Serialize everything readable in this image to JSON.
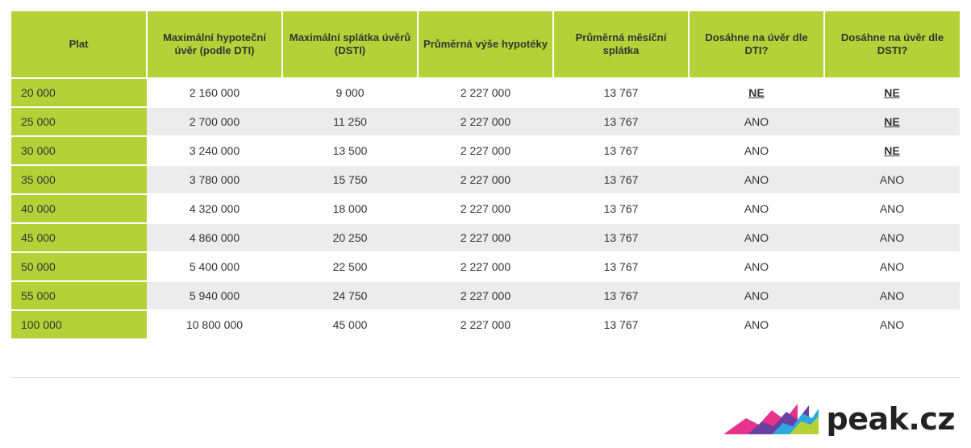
{
  "table": {
    "headers": [
      "Plat",
      "Maximální hypoteční úvěr (podle DTI)",
      "Maximální splátka úvěrů (DSTI)",
      "Průměrná výše hypotéky",
      "Průměrná měsíční splátka",
      "Dosáhne na úvěr dle DTI?",
      "Dosáhne na úvěr dle DSTI?"
    ],
    "rows": [
      [
        "20 000",
        "2 160 000",
        "9 000",
        "2 227 000",
        "13 767",
        "NE",
        "NE"
      ],
      [
        "25 000",
        "2 700 000",
        "11 250",
        "2 227 000",
        "13 767",
        "ANO",
        "NE"
      ],
      [
        "30 000",
        "3 240 000",
        "13 500",
        "2 227 000",
        "13 767",
        "ANO",
        "NE"
      ],
      [
        "35 000",
        "3 780 000",
        "15 750",
        "2 227 000",
        "13 767",
        "ANO",
        "ANO"
      ],
      [
        "40 000",
        "4 320 000",
        "18 000",
        "2 227 000",
        "13 767",
        "ANO",
        "ANO"
      ],
      [
        "45 000",
        "4 860 000",
        "20 250",
        "2 227 000",
        "13 767",
        "ANO",
        "ANO"
      ],
      [
        "50 000",
        "5 400 000",
        "22 500",
        "2 227 000",
        "13 767",
        "ANO",
        "ANO"
      ],
      [
        "55 000",
        "5 940 000",
        "24 750",
        "2 227 000",
        "13 767",
        "ANO",
        "ANO"
      ],
      [
        "100 000",
        "10 800 000",
        "45 000",
        "2 227 000",
        "13 767",
        "ANO",
        "ANO"
      ]
    ]
  },
  "logo": {
    "text": "peak.cz"
  },
  "colors": {
    "accent_green": "#b4d238",
    "row_alt": "#ececec",
    "text": "#333333"
  }
}
